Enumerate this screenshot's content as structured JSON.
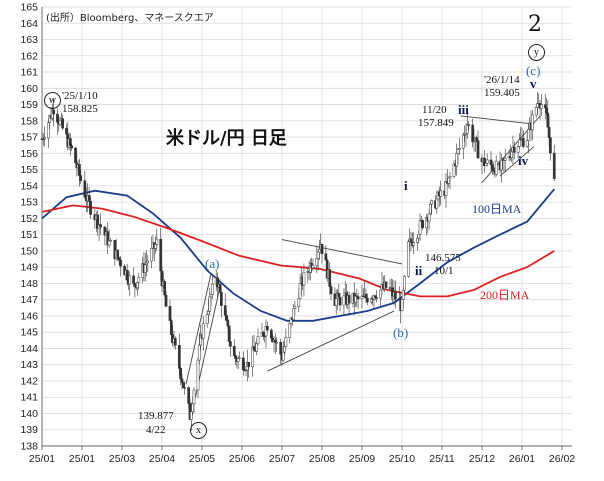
{
  "source_note": "(出所）Bloomberg、マネースクエア",
  "chart_data": {
    "type": "candlestick",
    "title": "米ドル/円 日足",
    "y_ticks": [
      138,
      139,
      140,
      141,
      142,
      143,
      144,
      145,
      146,
      147,
      148,
      149,
      150,
      151,
      152,
      153,
      154,
      155,
      156,
      157,
      158,
      159,
      160,
      161,
      162,
      163,
      164,
      165
    ],
    "x_ticks": [
      "25/01",
      "25/01",
      "25/03",
      "25/04",
      "25/05",
      "25/06",
      "25/07",
      "25/08",
      "25/09",
      "25/10",
      "25/11",
      "25/12",
      "26/01",
      "26/02"
    ],
    "ylim": [
      138,
      165
    ],
    "price_anchors": [
      {
        "date": "25/01/01",
        "close": 156.9
      },
      {
        "date": "25/01/10",
        "close": 158.825
      },
      {
        "date": "25/01/25",
        "close": 156.0
      },
      {
        "date": "25/02/05",
        "close": 153.0
      },
      {
        "date": "25/02/20",
        "close": 150.5
      },
      {
        "date": "25/03/10",
        "close": 147.8
      },
      {
        "date": "25/03/28",
        "close": 150.5
      },
      {
        "date": "25/04/05",
        "close": 146.0
      },
      {
        "date": "25/04/15",
        "close": 142.5
      },
      {
        "date": "25/04/22",
        "close": 139.877
      },
      {
        "date": "25/05/01",
        "close": 145.0
      },
      {
        "date": "25/05/12",
        "close": 148.5
      },
      {
        "date": "25/05/25",
        "close": 143.5
      },
      {
        "date": "25/06/05",
        "close": 143.0
      },
      {
        "date": "25/06/20",
        "close": 145.5
      },
      {
        "date": "25/07/01",
        "close": 143.5
      },
      {
        "date": "25/07/15",
        "close": 147.8
      },
      {
        "date": "25/07/31",
        "close": 150.5
      },
      {
        "date": "25/08/10",
        "close": 147.0
      },
      {
        "date": "25/09/01",
        "close": 147.0
      },
      {
        "date": "25/09/20",
        "close": 147.8
      },
      {
        "date": "25/10/01",
        "close": 146.575
      },
      {
        "date": "25/10/06",
        "close": 150.3
      },
      {
        "date": "25/10/15",
        "close": 151.5
      },
      {
        "date": "25/10/25",
        "close": 152.8
      },
      {
        "date": "25/11/05",
        "close": 154.0
      },
      {
        "date": "25/11/20",
        "close": 157.849
      },
      {
        "date": "25/12/01",
        "close": 155.5
      },
      {
        "date": "25/12/15",
        "close": 155.0
      },
      {
        "date": "25/12/26",
        "close": 156.5
      },
      {
        "date": "26/01/05",
        "close": 157.0
      },
      {
        "date": "26/01/14",
        "close": 159.405
      },
      {
        "date": "26/01/20",
        "close": 158.2
      },
      {
        "date": "26/01/24",
        "close": 155.8
      },
      {
        "date": "26/01/26",
        "close": 154.2
      }
    ],
    "series": [
      {
        "name": "100日MA",
        "color": "#1a3c8c",
        "points": [
          [
            "25/01/01",
            152.0
          ],
          [
            "25/01/20",
            153.3
          ],
          [
            "25/02/10",
            153.7
          ],
          [
            "25/03/05",
            153.4
          ],
          [
            "25/03/25",
            152.3
          ],
          [
            "25/04/15",
            150.8
          ],
          [
            "25/05/05",
            148.8
          ],
          [
            "25/05/25",
            147.4
          ],
          [
            "25/06/15",
            146.3
          ],
          [
            "25/07/05",
            145.7
          ],
          [
            "25/07/25",
            145.7
          ],
          [
            "25/08/15",
            146.0
          ],
          [
            "25/09/05",
            146.3
          ],
          [
            "25/09/25",
            146.8
          ],
          [
            "25/10/15",
            148.0
          ],
          [
            "25/11/05",
            149.3
          ],
          [
            "25/11/25",
            150.2
          ],
          [
            "25/12/15",
            151.0
          ],
          [
            "26/01/05",
            151.8
          ],
          [
            "26/01/26",
            153.8
          ]
        ]
      },
      {
        "name": "200日MA",
        "color": "#e02020",
        "points": [
          [
            "25/01/01",
            152.4
          ],
          [
            "25/01/25",
            152.8
          ],
          [
            "25/02/15",
            152.6
          ],
          [
            "25/03/10",
            152.1
          ],
          [
            "25/04/05",
            151.4
          ],
          [
            "25/05/01",
            150.6
          ],
          [
            "25/05/30",
            149.7
          ],
          [
            "25/06/30",
            149.1
          ],
          [
            "25/07/30",
            148.9
          ],
          [
            "25/08/30",
            148.3
          ],
          [
            "25/09/20",
            147.6
          ],
          [
            "25/10/15",
            147.2
          ],
          [
            "25/11/05",
            147.2
          ],
          [
            "25/11/25",
            147.6
          ],
          [
            "25/12/15",
            148.4
          ],
          [
            "26/01/05",
            149.0
          ],
          [
            "26/01/26",
            150.0
          ]
        ]
      }
    ],
    "annotations": {
      "w_label": "w",
      "w_date": "'25/1/10",
      "w_value": "158.825",
      "x_label": "x",
      "x_value": "139.877",
      "x_date": "4/22",
      "y_label": "y",
      "big_2": "2",
      "a_label": "(a)",
      "b_label": "(b)",
      "c_label": "(c)",
      "i_label": "i",
      "ii_label": "ii",
      "iii_label": "iii",
      "iv_label": "iv",
      "v_label": "v",
      "ii_value": "146.575",
      "ii_date": "10/1",
      "iii_date": "11/20",
      "iii_value": "157.849",
      "v_date": "'26/1/14",
      "v_value": "159.405",
      "ma100_label": "100日MA",
      "ma200_label": "200日MA"
    }
  }
}
